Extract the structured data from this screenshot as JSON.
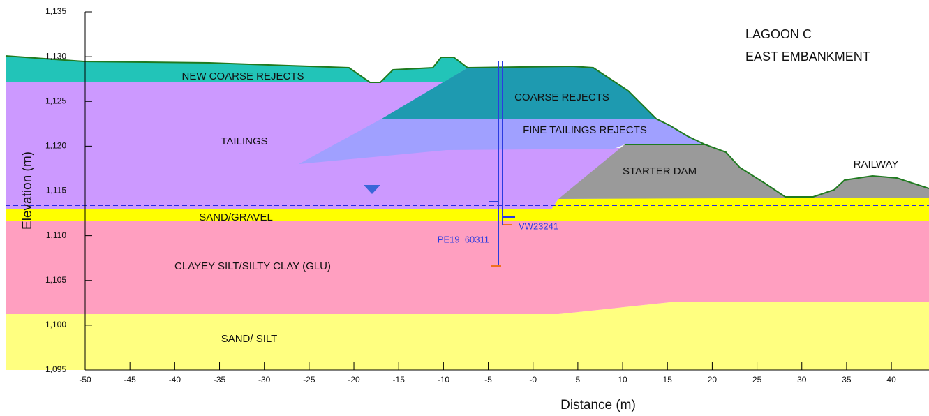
{
  "title": [
    "LAGOON C",
    "EAST EMBANKMENT"
  ],
  "axes": {
    "x_label": "Distance (m)",
    "y_label": "Elevation (m)",
    "xlim": [
      -50,
      44.2
    ],
    "ylim": [
      1095,
      1135
    ],
    "xticks": [
      -50,
      -45,
      -40,
      -35,
      -30,
      -25,
      -20,
      -15,
      -10,
      -5,
      {
        "value": 0,
        "label": "-0"
      },
      5,
      10,
      15,
      20,
      25,
      30,
      35,
      40
    ],
    "yticks": [
      {
        "value": 1095,
        "label": "1,095"
      },
      {
        "value": 1100,
        "label": "1,100"
      },
      {
        "value": 1105,
        "label": "1,105"
      },
      {
        "value": 1110,
        "label": "1,110"
      },
      {
        "value": 1115,
        "label": "1,115"
      },
      {
        "value": 1120,
        "label": "1,120"
      },
      {
        "value": 1125,
        "label": "1,125"
      },
      {
        "value": 1130,
        "label": "1,130"
      },
      {
        "value": 1135,
        "label": "1,135"
      }
    ]
  },
  "layers": [
    "NEW COARSE REJECTS",
    "COARSE REJECTS",
    "TAILINGS",
    "FINE TAILINGS REJECTS",
    "STARTER DAM",
    "RAILWAY",
    "SAND/GRAVEL",
    "CLAYEY SILT/SILTY CLAY (GLU)",
    "SAND/ SILT"
  ],
  "instruments": [
    "PE19_60311",
    "VW23241"
  ]
}
